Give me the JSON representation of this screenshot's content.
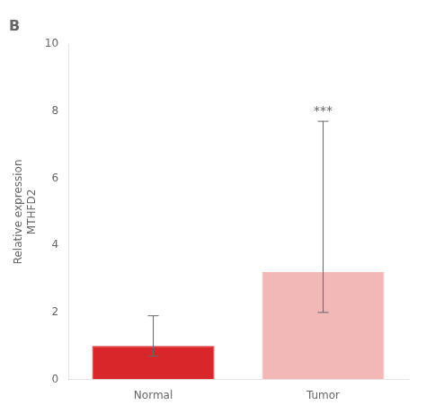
{
  "chart_data": {
    "type": "bar",
    "title": "B",
    "categories": [
      "Normal",
      "Tumor"
    ],
    "values": [
      1.0,
      3.2
    ],
    "colors": [
      "#d9262b",
      "#f2b8b8"
    ],
    "error_low": [
      0.3,
      1.2
    ],
    "error_high": [
      0.9,
      4.5
    ],
    "ylabel": "Relative expression\nMTHFD2",
    "ylim": [
      0,
      10
    ],
    "yticks": [
      0,
      2,
      4,
      6,
      8,
      10
    ],
    "annotations": [
      {
        "text": "***",
        "x": "Tumor",
        "y": 7.8
      }
    ],
    "grid": false
  }
}
